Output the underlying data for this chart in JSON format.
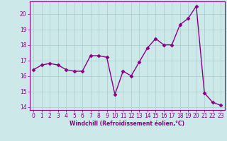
{
  "x": [
    0,
    1,
    2,
    3,
    4,
    5,
    6,
    7,
    8,
    9,
    10,
    11,
    12,
    13,
    14,
    15,
    16,
    17,
    18,
    19,
    20,
    21,
    22,
    23
  ],
  "y": [
    16.4,
    16.7,
    16.8,
    16.7,
    16.4,
    16.3,
    16.3,
    17.3,
    17.3,
    17.2,
    14.8,
    16.3,
    16.0,
    16.9,
    17.8,
    18.4,
    18.0,
    18.0,
    19.3,
    19.7,
    20.5,
    14.9,
    14.3,
    14.1
  ],
  "line_color": "#880088",
  "marker": "D",
  "marker_size": 2.5,
  "bg_color": "#cce8e8",
  "grid_color": "#aacccc",
  "xlabel": "Windchill (Refroidissement éolien,°C)",
  "xlabel_color": "#880088",
  "tick_color": "#880088",
  "ylim": [
    13.8,
    20.8
  ],
  "yticks": [
    14,
    15,
    16,
    17,
    18,
    19,
    20
  ],
  "xlim": [
    -0.5,
    23.5
  ],
  "xticks": [
    0,
    1,
    2,
    3,
    4,
    5,
    6,
    7,
    8,
    9,
    10,
    11,
    12,
    13,
    14,
    15,
    16,
    17,
    18,
    19,
    20,
    21,
    22,
    23
  ],
  "spine_color": "#880088",
  "line_width": 1.0
}
